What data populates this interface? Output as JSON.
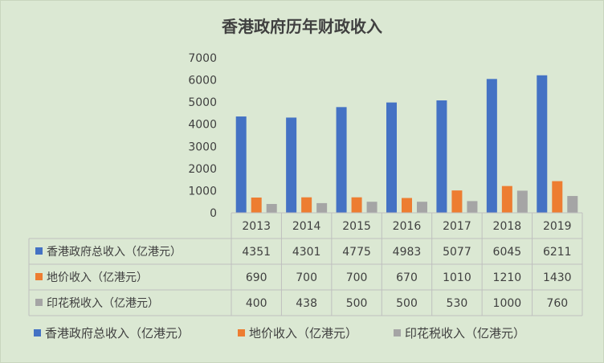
{
  "chart_data": {
    "type": "bar",
    "title": "香港政府历年财政收入",
    "categories": [
      "2013",
      "2014",
      "2015",
      "2016",
      "2017",
      "2018",
      "2019"
    ],
    "ylim": [
      0,
      7000
    ],
    "yticks": [
      "0",
      "1000",
      "2000",
      "3000",
      "4000",
      "5000",
      "6000",
      "7000"
    ],
    "grid": false,
    "legend_position": "bottom",
    "data_table": true,
    "series": [
      {
        "name": "香港政府总收入（亿港元）",
        "color": "#4472c4",
        "values": [
          4351,
          4301,
          4775,
          4983,
          5077,
          6045,
          6211
        ],
        "labels": [
          "4351",
          "4301",
          "4775",
          "4983",
          "5077",
          "6045",
          "6211"
        ]
      },
      {
        "name": "地价收入（亿港元）",
        "color": "#ed7d31",
        "values": [
          690,
          700,
          700,
          670,
          1010,
          1210,
          1430
        ],
        "labels": [
          "690",
          "700",
          "700",
          "670",
          "1010",
          "1210",
          "1430"
        ]
      },
      {
        "name": "印花税收入（亿港元）",
        "color": "#a5a5a5",
        "values": [
          400,
          438,
          500,
          500,
          530,
          1000,
          760
        ],
        "labels": [
          "400",
          "438",
          "500",
          "500",
          "530",
          "1000",
          "760"
        ]
      }
    ]
  }
}
